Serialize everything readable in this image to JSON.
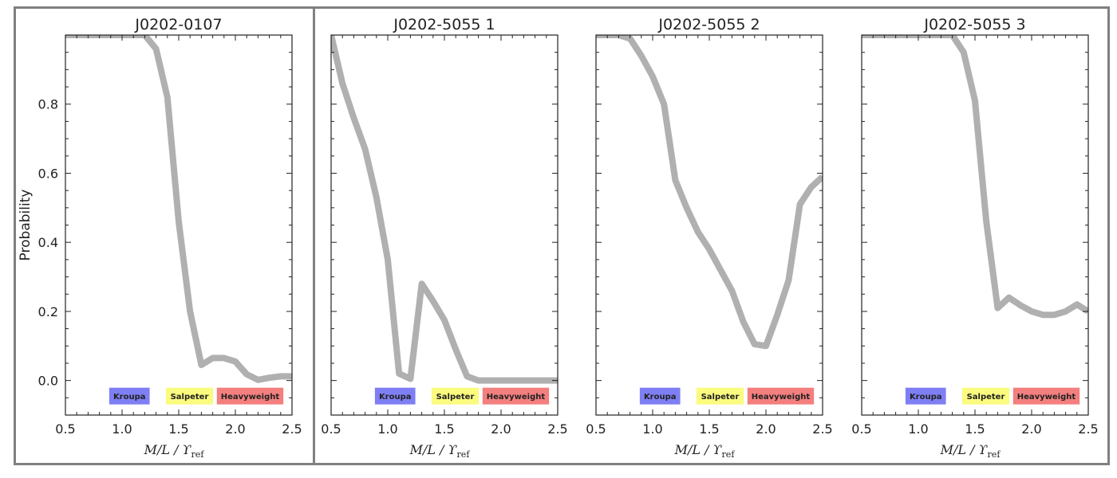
{
  "colors": {
    "curve": "#b0b0b0",
    "kroupa": "#7f7ff5",
    "salpeter": "#fbfb7f",
    "heavyweight": "#f47f7f",
    "frame": "#808080"
  },
  "axis": {
    "ylabel": "Probability",
    "xlabel_main": "M/L / ϒ",
    "xlabel_sub": "ref",
    "xlim": [
      0.5,
      2.5
    ],
    "ylim": [
      -0.1,
      1.0
    ],
    "xticks": [
      "0.5",
      "1.0",
      "1.5",
      "2.0",
      "2.5"
    ],
    "yticks": [
      "0.0",
      "0.2",
      "0.4",
      "0.6",
      "0.8"
    ]
  },
  "bands": [
    {
      "label": "Kroupa",
      "x0": 0.89,
      "x1": 1.24,
      "color_key": "kroupa"
    },
    {
      "label": "Salpeter",
      "x0": 1.39,
      "x1": 1.8,
      "color_key": "salpeter"
    },
    {
      "label": "Heavyweight",
      "x0": 1.84,
      "x1": 2.42,
      "color_key": "heavyweight"
    }
  ],
  "chart_data": [
    {
      "type": "line",
      "title": "J0202-0107",
      "x": [
        0.5,
        0.6,
        0.7,
        0.8,
        0.9,
        1.0,
        1.1,
        1.2,
        1.3,
        1.4,
        1.5,
        1.6,
        1.7,
        1.8,
        1.9,
        2.0,
        2.1,
        2.2,
        2.3,
        2.4,
        2.5
      ],
      "y": [
        1.0,
        1.0,
        1.0,
        1.0,
        1.0,
        1.0,
        1.0,
        1.0,
        0.96,
        0.82,
        0.46,
        0.2,
        0.045,
        0.065,
        0.065,
        0.055,
        0.018,
        0.002,
        0.008,
        0.012,
        0.012
      ]
    },
    {
      "type": "line",
      "title": "J0202-5055 1",
      "x": [
        0.5,
        0.6,
        0.7,
        0.8,
        0.9,
        1.0,
        1.1,
        1.2,
        1.3,
        1.4,
        1.5,
        1.6,
        1.7,
        1.8,
        1.9,
        2.0,
        2.1,
        2.2,
        2.3,
        2.4,
        2.5
      ],
      "y": [
        1.0,
        0.86,
        0.76,
        0.67,
        0.53,
        0.35,
        0.02,
        0.005,
        0.28,
        0.23,
        0.175,
        0.09,
        0.012,
        0.0,
        0.0,
        0.0,
        0.0,
        0.0,
        0.0,
        0.0,
        0.0
      ]
    },
    {
      "type": "line",
      "title": "J0202-5055 2",
      "x": [
        0.5,
        0.6,
        0.7,
        0.8,
        0.9,
        1.0,
        1.1,
        1.2,
        1.3,
        1.4,
        1.5,
        1.6,
        1.7,
        1.8,
        1.9,
        2.0,
        2.1,
        2.2,
        2.3,
        2.4,
        2.5
      ],
      "y": [
        1.0,
        1.0,
        1.0,
        0.99,
        0.94,
        0.88,
        0.8,
        0.58,
        0.5,
        0.43,
        0.38,
        0.32,
        0.26,
        0.17,
        0.105,
        0.1,
        0.19,
        0.29,
        0.51,
        0.56,
        0.59
      ]
    },
    {
      "type": "line",
      "title": "J0202-5055 3",
      "x": [
        0.5,
        0.6,
        0.7,
        0.8,
        0.9,
        1.0,
        1.1,
        1.2,
        1.3,
        1.4,
        1.5,
        1.6,
        1.7,
        1.8,
        1.9,
        2.0,
        2.1,
        2.2,
        2.3,
        2.4,
        2.5
      ],
      "y": [
        1.0,
        1.0,
        1.0,
        1.0,
        1.0,
        1.0,
        1.0,
        1.0,
        1.0,
        0.95,
        0.81,
        0.46,
        0.21,
        0.24,
        0.218,
        0.2,
        0.19,
        0.19,
        0.2,
        0.22,
        0.2
      ]
    }
  ]
}
